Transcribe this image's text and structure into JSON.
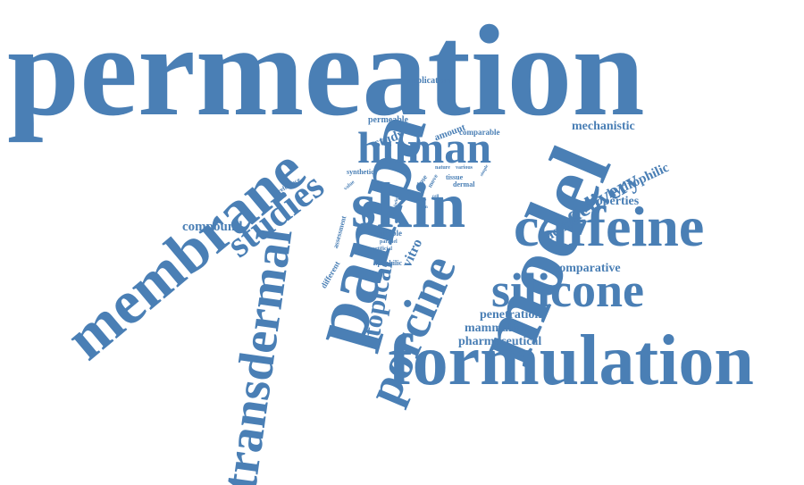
{
  "colors": {
    "word": "#4a7fb5",
    "background": "#ffffff"
  },
  "words": {
    "permeation": "permeation",
    "membrane": "membrane",
    "pampa": "pampa",
    "model": "model",
    "formulation": "formulation",
    "skin": "skin",
    "human": "human",
    "caffeine": "caffeine",
    "silicone": "silicone",
    "transdermal": "transdermal",
    "porcine": "porcine",
    "studies": "studies",
    "topical": "topical",
    "delivery": "delivery",
    "compound": "compound",
    "penetration": "penetration",
    "mammalian": "mammalian",
    "pharmaceutical": "pharmaceutical",
    "comparative": "comparative",
    "properties": "properties",
    "hydrophilic": "hydrophilic",
    "active": "active",
    "mechanistic": "mechanistic",
    "application": "application",
    "permeable": "permeable",
    "study": "study",
    "amount": "amount",
    "comparable": "comparable",
    "synthetic": "synthetic",
    "reference": "reference",
    "value": "value",
    "assessment": "assessment",
    "different": "different",
    "suitable": "suitable",
    "parallel": "parallel",
    "artificial": "artificial",
    "lipophilic": "lipophilic",
    "vitro": "vitro",
    "dose": "dose",
    "move": "move",
    "tissue": "tissue",
    "dermal": "dermal",
    "nature": "nature",
    "various": "various",
    "simple": "simple",
    "level": "level",
    "range": "range",
    "main": "main",
    "solution": "solution",
    "cell": "cell"
  }
}
